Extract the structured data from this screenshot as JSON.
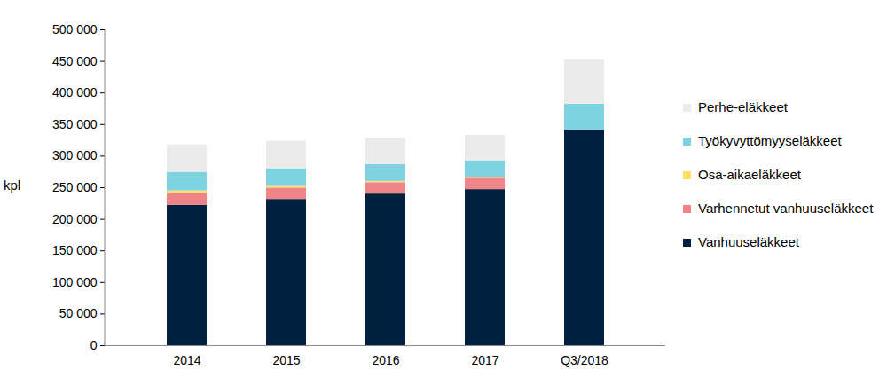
{
  "chart_data": {
    "type": "bar",
    "stacked": true,
    "y_label": "kpl",
    "categories": [
      "2014",
      "2015",
      "2016",
      "2017",
      "Q3/2018"
    ],
    "series": [
      {
        "name": "Vanhuuseläkkeet",
        "color": "#00203f",
        "values": [
          222000,
          231500,
          240000,
          247000,
          341000
        ]
      },
      {
        "name": "Varhennetut vanhuuseläkkeet",
        "color": "#ef8489",
        "values": [
          19000,
          18000,
          18000,
          18000,
          0
        ]
      },
      {
        "name": "Osa-aikaeläkkeet",
        "color": "#ffe066",
        "values": [
          4000,
          2500,
          2000,
          500,
          0
        ]
      },
      {
        "name": "Työkyvyttömyyseläkkeet",
        "color": "#7fd3e0",
        "values": [
          29500,
          28000,
          26500,
          26500,
          41000
        ]
      },
      {
        "name": "Perhe-eläkkeet",
        "color": "#ebebeb",
        "values": [
          43500,
          43500,
          42000,
          41000,
          70000
        ]
      }
    ],
    "ylim": [
      0,
      500000
    ],
    "yticks": [
      0,
      {
        "value": 50000,
        "label": "50 000"
      },
      {
        "value": 100000,
        "label": "100 000"
      },
      {
        "value": 150000,
        "label": "150 000"
      },
      {
        "value": 200000,
        "label": "200 000"
      },
      {
        "value": 250000,
        "label": "250 000"
      },
      {
        "value": 300000,
        "label": "300 000"
      },
      {
        "value": 350000,
        "label": "350 000"
      },
      {
        "value": 400000,
        "label": "400 000"
      },
      {
        "value": 450000,
        "label": "450 000"
      },
      {
        "value": 500000,
        "label": "500 000"
      }
    ],
    "grid": false,
    "legend": "right"
  }
}
